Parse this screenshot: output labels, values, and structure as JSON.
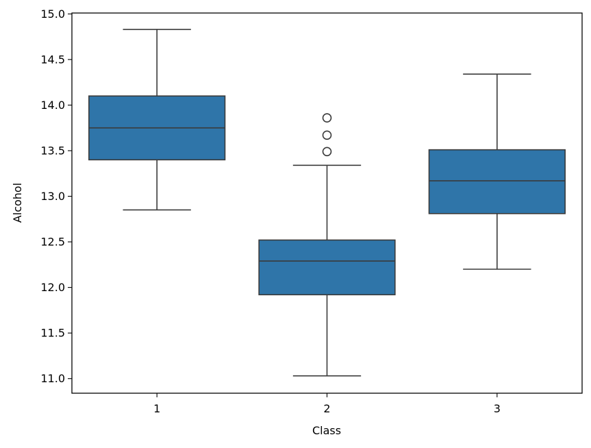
{
  "chart_data": {
    "type": "box",
    "title": "",
    "xlabel": "Class",
    "ylabel": "Alcohol",
    "categories": [
      "1",
      "2",
      "3"
    ],
    "ylim": [
      10.84,
      15.01
    ],
    "yticks": [
      "11.0",
      "11.5",
      "12.0",
      "12.5",
      "13.0",
      "13.5",
      "14.0",
      "14.5",
      "15.0"
    ],
    "grid": false,
    "box_color": "#2f75a9",
    "line_color": "#3a3a3a",
    "boxes": [
      {
        "category": "1",
        "whisker_low": 12.85,
        "q1": 13.4,
        "median": 13.75,
        "q3": 14.1,
        "whisker_high": 14.83,
        "outliers": []
      },
      {
        "category": "2",
        "whisker_low": 11.03,
        "q1": 11.92,
        "median": 12.29,
        "q3": 12.52,
        "whisker_high": 13.34,
        "outliers": [
          13.49,
          13.67,
          13.86
        ]
      },
      {
        "category": "3",
        "whisker_low": 12.2,
        "q1": 12.81,
        "median": 13.17,
        "q3": 13.51,
        "whisker_high": 14.34,
        "outliers": []
      }
    ]
  }
}
